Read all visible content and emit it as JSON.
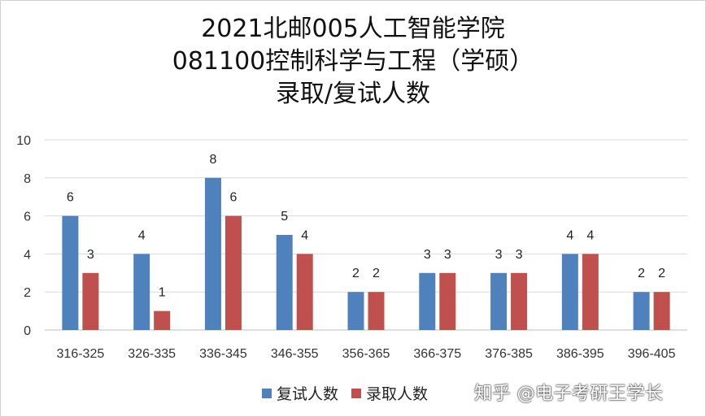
{
  "title_lines": [
    "2021北邮005人工智能学院",
    "081100控制科学与工程（学硕）",
    "录取/复试人数"
  ],
  "watermark": "知乎 @电子考研王学长",
  "colors": {
    "series1": "#4f81bd",
    "series2": "#c0504d",
    "grid": "#d9d9d9",
    "axis": "#bfbfbf"
  },
  "chart_data": {
    "type": "bar",
    "title": "2021北邮005人工智能学院 081100控制科学与工程（学硕） 录取/复试人数",
    "categories": [
      "316-325",
      "326-335",
      "336-345",
      "346-355",
      "356-365",
      "366-375",
      "376-385",
      "386-395",
      "396-405"
    ],
    "series": [
      {
        "name": "复试人数",
        "values": [
          6,
          4,
          8,
          5,
          2,
          3,
          3,
          4,
          2
        ]
      },
      {
        "name": "录取人数",
        "values": [
          3,
          1,
          6,
          4,
          2,
          3,
          3,
          4,
          2
        ]
      }
    ],
    "y_ticks": [
      "0",
      "2",
      "4",
      "6",
      "8",
      "10"
    ],
    "ylim": [
      0,
      10
    ],
    "grid": true,
    "legend": "bottom-center"
  }
}
